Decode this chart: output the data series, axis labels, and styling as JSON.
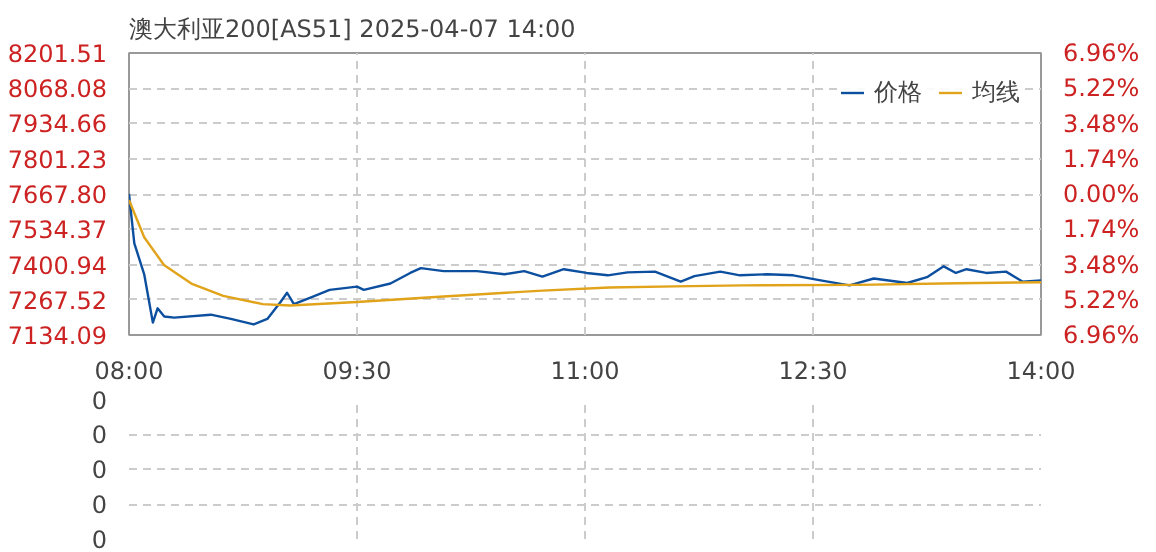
{
  "chart_data": [
    {
      "type": "line",
      "title": "澳大利亚200[AS51] 2025-04-07 14:00",
      "legend": "top right",
      "grid": true,
      "line_style": "solid",
      "marker": "none",
      "xlim": [
        8,
        14
      ],
      "xticks": [
        {
          "value": 8,
          "label": "08:00"
        },
        {
          "value": 9.5,
          "label": "09:30"
        },
        {
          "value": 11,
          "label": "11:00"
        },
        {
          "value": 12.5,
          "label": "12:30"
        },
        {
          "value": 14,
          "label": "14:00"
        }
      ],
      "ylim": [
        7134.09,
        8201.51
      ],
      "yticks": [
        7134.09,
        7267.52,
        7400.94,
        7534.37,
        {
          "value": 7667.8,
          "label": "7667.80"
        },
        7801.23,
        7934.66,
        8068.08,
        8201.51
      ],
      "y2lim": [
        -6.96,
        6.96
      ],
      "y2ticks": [
        {
          "value": -6.96,
          "label": "6.96%"
        },
        {
          "value": -5.22,
          "label": "5.22%"
        },
        {
          "value": -3.48,
          "label": "3.48%"
        },
        {
          "value": -1.74,
          "label": "1.74%"
        },
        {
          "value": 0,
          "label": "0.00%"
        },
        {
          "value": 1.74,
          "label": "1.74%"
        },
        {
          "value": 3.48,
          "label": "3.48%"
        },
        {
          "value": 5.22,
          "label": "5.22%"
        },
        {
          "value": 6.96,
          "label": "6.96%"
        }
      ],
      "series": [
        {
          "name": "价格",
          "color": "#0d4f9f",
          "x": [
            8.0,
            8.035,
            8.1,
            8.157,
            8.188,
            8.232,
            8.297,
            8.538,
            8.67,
            8.82,
            8.91,
            8.997,
            9.04,
            9.085,
            9.19,
            9.32,
            9.5,
            9.545,
            9.72,
            9.85,
            9.92,
            10.07,
            10.29,
            10.47,
            10.6,
            10.72,
            10.86,
            11.01,
            11.15,
            11.28,
            11.46,
            11.63,
            11.72,
            11.89,
            12.02,
            12.2,
            12.37,
            12.55,
            12.74,
            12.9,
            13.12,
            13.25,
            13.36,
            13.44,
            13.51,
            13.64,
            13.77,
            13.88,
            14.0
          ],
          "values": [
            7667.8,
            7481,
            7364,
            7181,
            7235,
            7204,
            7200,
            7211,
            7195,
            7174,
            7195,
            7259,
            7294,
            7251,
            7275,
            7305,
            7317,
            7305,
            7329,
            7369,
            7387,
            7376,
            7376,
            7364,
            7376,
            7355,
            7383,
            7369,
            7360,
            7371,
            7374,
            7336,
            7357,
            7374,
            7360,
            7364,
            7360,
            7341,
            7322,
            7348,
            7331,
            7353,
            7394,
            7369,
            7383,
            7369,
            7374,
            7336,
            7341
          ]
        },
        {
          "name": "均线",
          "color": "#e0a31a",
          "x": [
            8.0,
            8.1,
            8.23,
            8.41,
            8.62,
            8.88,
            9.06,
            9.5,
            10.07,
            10.72,
            11.16,
            11.59,
            12.04,
            12.8,
            13.45,
            14.0
          ],
          "values": [
            7645,
            7504,
            7399,
            7329,
            7282,
            7251,
            7246,
            7259,
            7280,
            7302,
            7314,
            7318,
            7322,
            7324,
            7330,
            7334
          ]
        }
      ]
    },
    {
      "type": "other",
      "annotations": [
        "0",
        "0",
        "0",
        "0",
        "0"
      ]
    }
  ]
}
